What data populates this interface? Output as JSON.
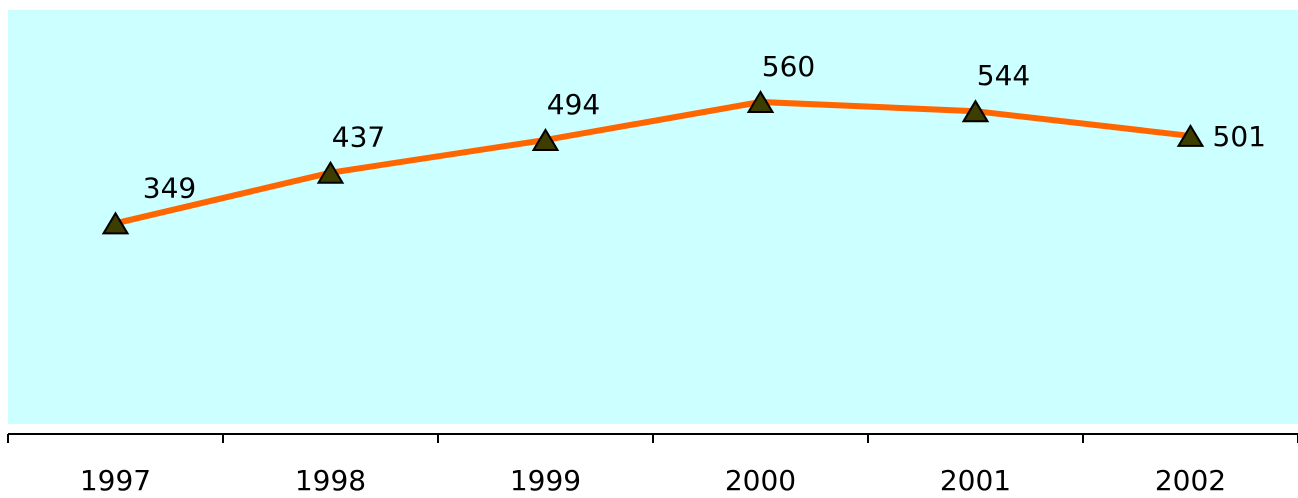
{
  "chart_data": {
    "type": "line",
    "categories": [
      "1997",
      "1998",
      "1999",
      "2000",
      "2001",
      "2002"
    ],
    "series": [
      {
        "values": [
          349,
          437,
          494,
          560,
          544,
          501
        ],
        "labels": [
          "349",
          "437",
          "494",
          "560",
          "544",
          "501"
        ],
        "line_color": "#FF6600",
        "marker": "triangle",
        "marker_color": "#3D3D00"
      }
    ],
    "title": "",
    "xlabel": "",
    "ylabel": "",
    "ylim": [
      0,
      720
    ],
    "y_axis_visible": false,
    "grid": false,
    "legend": "none",
    "plot_background": "#CCFFFF"
  }
}
